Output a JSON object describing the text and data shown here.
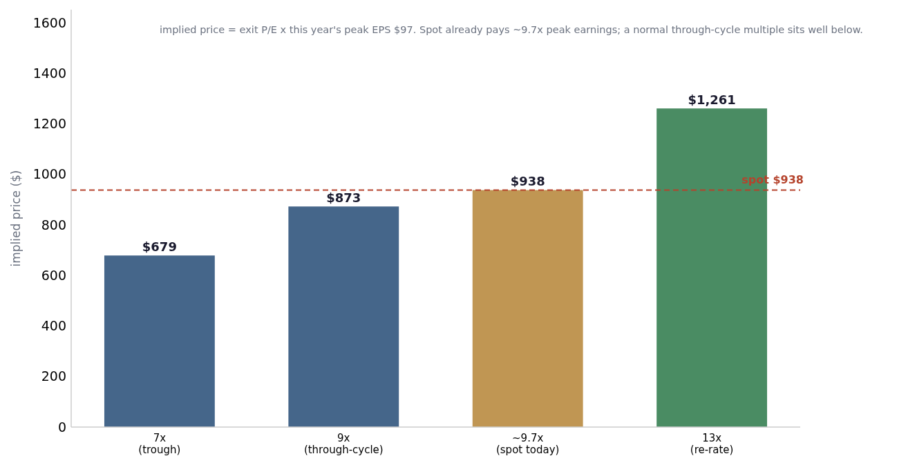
{
  "chart_data": {
    "type": "bar",
    "ylabel": "implied price ($)",
    "categories": [
      "7x\n(trough)",
      "9x\n(through-cycle)",
      "~9.7x\n(spot today)",
      "13x\n(re-rate)"
    ],
    "values": [
      679,
      873,
      938,
      1261
    ],
    "colors": [
      "#45668a",
      "#45668a",
      "#c09653",
      "#4a8c63"
    ],
    "value_labels": [
      "$679",
      "$873",
      "$938",
      "$1,261"
    ],
    "ylim": [
      0,
      1652
    ],
    "yticks": [
      0,
      200,
      400,
      600,
      800,
      1000,
      1200,
      1400,
      1600
    ],
    "grid": false,
    "ref_lines": [
      {
        "axis": "y",
        "value": 938,
        "label": "spot $938",
        "color": "#b5432c",
        "line_style": "dashed"
      }
    ],
    "annotations": [
      "implied price = exit P/E x this year's peak EPS $97. Spot already pays ~9.7x peak earnings; a normal through-cycle multiple sits well below."
    ]
  }
}
